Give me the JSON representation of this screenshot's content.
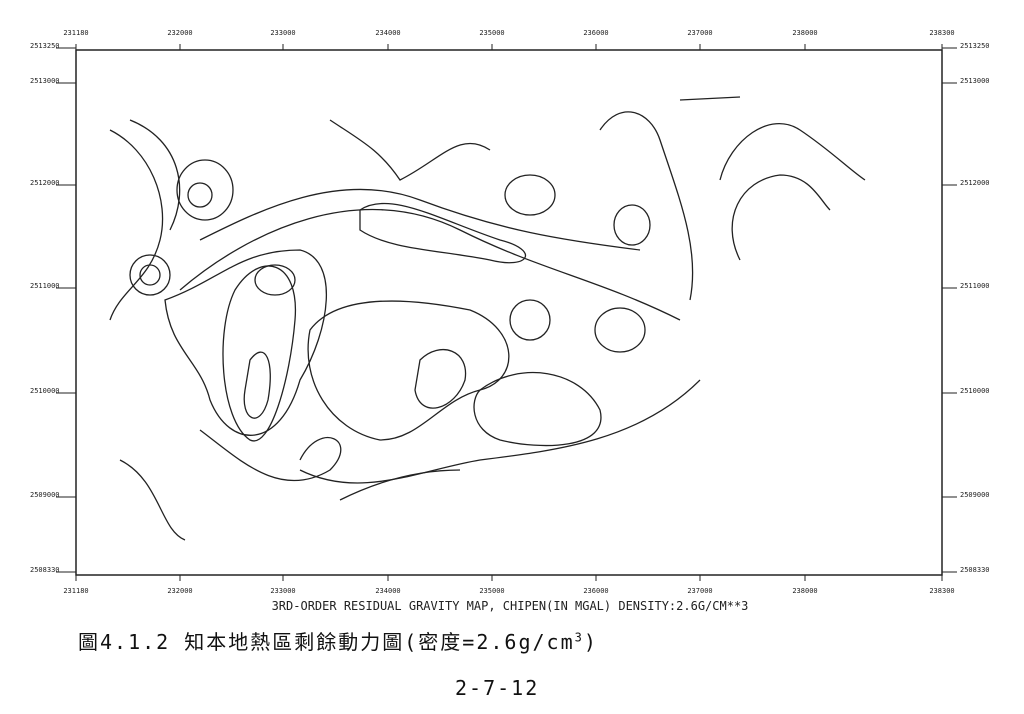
{
  "map": {
    "x_ticks": [
      "231180",
      "232000",
      "233000",
      "234000",
      "235000",
      "236000",
      "237000",
      "238000",
      "238300"
    ],
    "y_ticks": [
      "2513250",
      "2513000",
      "2512000",
      "2511000",
      "2510000",
      "2509000",
      "2508330"
    ],
    "title": "3RD-ORDER RESIDUAL GRAVITY MAP, CHIPEN(IN MGAL) DENSITY:2.6G/CM**3"
  },
  "caption": {
    "text": "圖4.1.2 知本地熱區剩餘動力圖(密度=2.6g/cm",
    "sup": "3",
    "end": ")"
  },
  "page_number": "2-7-12"
}
